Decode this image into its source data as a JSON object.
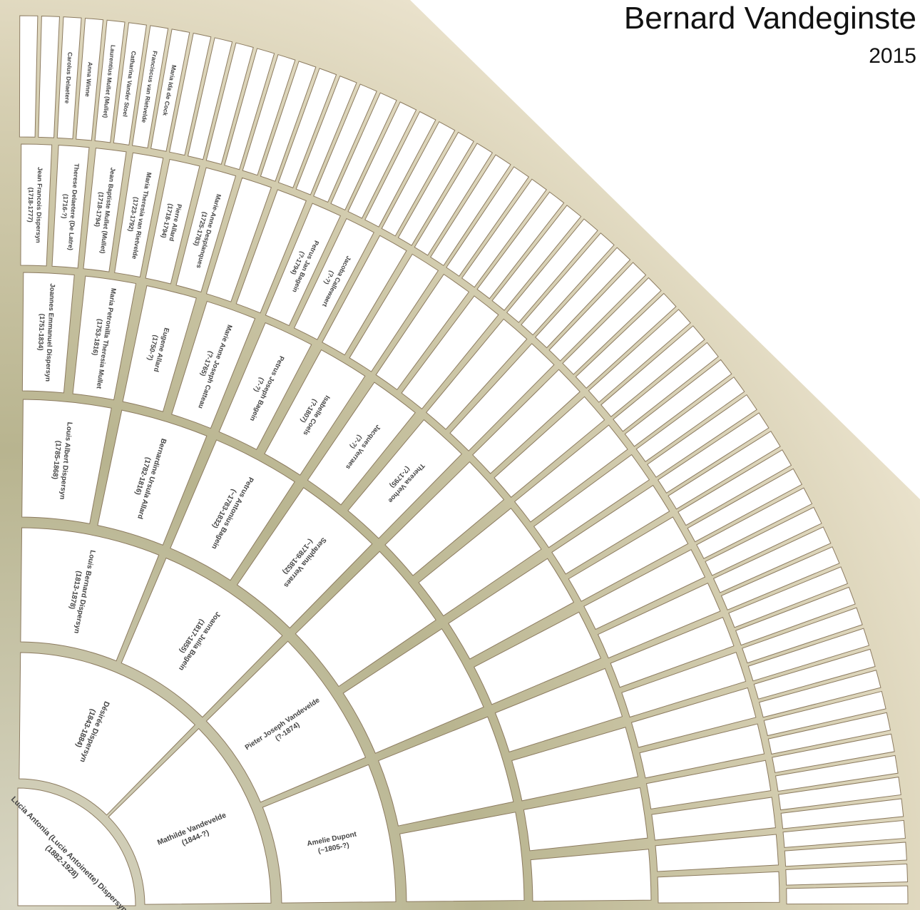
{
  "header": {
    "title": "Bernard Vandeginste",
    "subtitle": "2015"
  },
  "generations": [
    {
      "people": [
        {
          "name": "Lucia Antonia (Lucie Antoinette) Dispersyn",
          "dates": "(1882-1928)"
        }
      ]
    },
    {
      "people": [
        {
          "name": "Désirée Dispersyn",
          "dates": "(1843-1884)"
        },
        {
          "name": "Mathilde Vandevelde",
          "dates": "(1844-?)"
        }
      ]
    },
    {
      "people": [
        {
          "name": "Louis Bernard Dispersyn",
          "dates": "(1813-1878)"
        },
        {
          "name": "Joanna Julia Bagein",
          "dates": "(1817-1855)"
        },
        {
          "name": "Pieter Joseph Vandevelde",
          "dates": "(?-1874)"
        },
        {
          "name": "Amelie Dupont",
          "dates": "(~1805-?)"
        }
      ]
    },
    {
      "people": [
        {
          "name": "Louis Albert Dispersyn",
          "dates": "(1785-1868)"
        },
        {
          "name": "Bernardine Ursula Allard",
          "dates": "(1782-1816)"
        },
        {
          "name": "Petrus Antonius Bagein",
          "dates": "(~1783-1832)"
        },
        {
          "name": "Seraphina Verraes",
          "dates": "(~1789-1852)"
        },
        null,
        null,
        null,
        null
      ]
    },
    {
      "people": [
        {
          "name": "Joannes Emmanuel Dispersyn",
          "dates": "(1751-1834)"
        },
        {
          "name": "Maria Petronilla Theresia Mullet",
          "dates": "(1753-1816)"
        },
        {
          "name": "Eugene Allard",
          "dates": "(1750-?)"
        },
        {
          "name": "Marie Anne Joseph Catteau",
          "dates": "(?-1765)"
        },
        {
          "name": "Petrus Joseph Bagein",
          "dates": "(?-?)"
        },
        {
          "name": "Isabelle Coels",
          "dates": "(?-1807)"
        },
        {
          "name": "Jacques Verraes",
          "dates": "(?-?)"
        },
        {
          "name": "Theresa Verhoe",
          "dates": "(?-1795)"
        },
        null,
        null,
        null,
        null,
        null,
        null,
        null,
        null
      ]
    },
    {
      "people": [
        {
          "name": "Jean Francois Dispersyn",
          "dates": "(1718-1777)"
        },
        {
          "name": "Therese Delaetere (De Latre)",
          "dates": "(1716-?)"
        },
        {
          "name": "Jean Baptiste Mullet (Mullet)",
          "dates": "(1718-1794)"
        },
        {
          "name": "Maria Theresia van Rietvelde",
          "dates": "(1723-1792)"
        },
        {
          "name": "Pierre Allard",
          "dates": "(1718-1794)"
        },
        {
          "name": "Marie-Anne Desplanques",
          "dates": "(1725-1783)"
        },
        null,
        null,
        {
          "name": "Petrus Jan Bagein",
          "dates": "(?-1794)"
        },
        {
          "name": "Jacoba Callewaert",
          "dates": "(?-?)"
        },
        null,
        null,
        null,
        null,
        null,
        null,
        null,
        null,
        null,
        null,
        null,
        null,
        null,
        null,
        null,
        null,
        null,
        null,
        null,
        null,
        null,
        null
      ]
    },
    {
      "people": [
        null,
        null,
        {
          "name": "Carolus Delaetere"
        },
        {
          "name": "Anna Winne"
        },
        {
          "name": "Laurentius Mullet (Mullet)"
        },
        {
          "name": "Catharina Vander Stoel"
        },
        {
          "name": "Franciscus van Rietvelde"
        },
        {
          "name": "Maria Ida de Cock"
        },
        null,
        null,
        null,
        null,
        null,
        null,
        null,
        null,
        null,
        null,
        null,
        null,
        null,
        null,
        null,
        null,
        null,
        null,
        null,
        null,
        null,
        null,
        null,
        null,
        null,
        null,
        null,
        null,
        null,
        null,
        null,
        null,
        null,
        null,
        null,
        null,
        null,
        null,
        null,
        null,
        null,
        null,
        null,
        null,
        null,
        null,
        null,
        null,
        null,
        null,
        null,
        null,
        null,
        null,
        null,
        null
      ]
    }
  ]
}
